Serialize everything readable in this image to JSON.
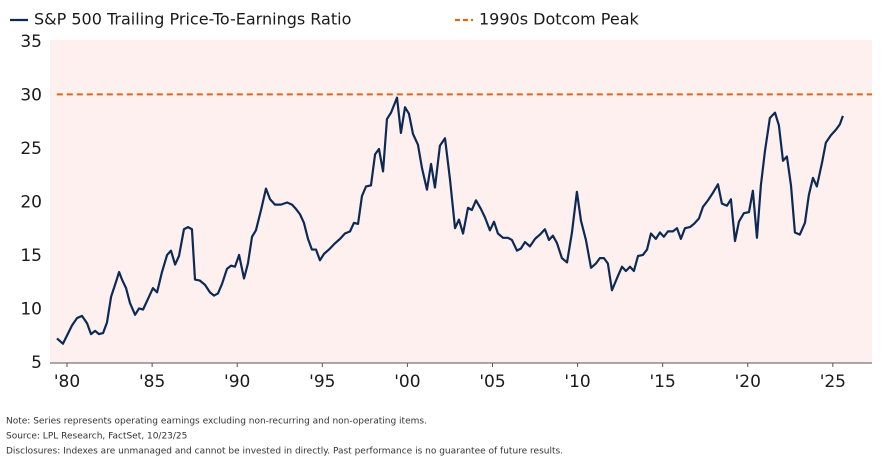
{
  "chart_data": {
    "type": "line",
    "xlim": [
      1979.0,
      2027.3
    ],
    "ylim": [
      5,
      35
    ],
    "yticks": [
      5,
      10,
      15,
      20,
      25,
      30,
      35
    ],
    "xticks": [
      {
        "value": 1980,
        "label": "'80"
      },
      {
        "value": 1985,
        "label": "'85"
      },
      {
        "value": 1990,
        "label": "'90"
      },
      {
        "value": 1995,
        "label": "'95"
      },
      {
        "value": 2000,
        "label": "'00"
      },
      {
        "value": 2005,
        "label": "'05"
      },
      {
        "value": 2010,
        "label": "'10"
      },
      {
        "value": 2015,
        "label": "'15"
      },
      {
        "value": 2020,
        "label": "'20"
      },
      {
        "value": 2025,
        "label": "'25"
      }
    ],
    "grid": false,
    "background": "#fdf0ef",
    "series": [
      {
        "name": "S&P 500 Trailing Price-To-Earnings Ratio",
        "color": "#0d2a55",
        "dashed": false,
        "x": [
          1979.41,
          1979.76,
          1980.29,
          1980.59,
          1980.88,
          1981.18,
          1981.41,
          1981.65,
          1981.88,
          1982.12,
          1982.35,
          1982.59,
          1982.82,
          1983.06,
          1983.23,
          1983.47,
          1983.7,
          1984.0,
          1984.23,
          1984.47,
          1984.76,
          1985.05,
          1985.29,
          1985.58,
          1985.88,
          1986.11,
          1986.35,
          1986.58,
          1986.87,
          1987.11,
          1987.34,
          1987.52,
          1987.81,
          1988.11,
          1988.4,
          1988.64,
          1988.87,
          1989.11,
          1989.4,
          1989.64,
          1989.87,
          1990.11,
          1990.4,
          1990.63,
          1990.87,
          1991.1,
          1991.4,
          1991.69,
          1991.93,
          1992.22,
          1992.57,
          1992.93,
          1993.22,
          1993.45,
          1993.69,
          1993.92,
          1994.16,
          1994.39,
          1994.63,
          1994.86,
          1995.1,
          1995.39,
          1995.69,
          1996.04,
          1996.33,
          1996.63,
          1996.86,
          1997.1,
          1997.33,
          1997.57,
          1997.86,
          1998.1,
          1998.33,
          1998.57,
          1998.8,
          1999.04,
          1999.39,
          1999.62,
          1999.86,
          2000.09,
          2000.33,
          2000.62,
          2000.86,
          2001.15,
          2001.39,
          2001.62,
          2001.91,
          2002.21,
          2002.5,
          2002.8,
          2003.03,
          2003.27,
          2003.56,
          2003.79,
          2004.03,
          2004.32,
          2004.56,
          2004.85,
          2005.09,
          2005.32,
          2005.62,
          2005.91,
          2006.14,
          2006.44,
          2006.67,
          2006.91,
          2007.2,
          2007.5,
          2007.79,
          2008.08,
          2008.32,
          2008.55,
          2008.79,
          2009.08,
          2009.38,
          2009.67,
          2009.96,
          2010.2,
          2010.49,
          2010.79,
          2011.08,
          2011.31,
          2011.55,
          2011.78,
          2012.02,
          2012.31,
          2012.61,
          2012.84,
          2013.08,
          2013.31,
          2013.55,
          2013.84,
          2014.08,
          2014.31,
          2014.6,
          2014.84,
          2015.07,
          2015.31,
          2015.6,
          2015.84,
          2016.07,
          2016.31,
          2016.6,
          2016.84,
          2017.13,
          2017.37,
          2017.66,
          2017.95,
          2018.25,
          2018.48,
          2018.78,
          2019.01,
          2019.25,
          2019.48,
          2019.77,
          2020.07,
          2020.3,
          2020.54,
          2020.77,
          2021.01,
          2021.3,
          2021.6,
          2021.83,
          2022.07,
          2022.3,
          2022.54,
          2022.77,
          2023.06,
          2023.36,
          2023.59,
          2023.83,
          2024.06,
          2024.36,
          2024.59,
          2024.89,
          2025.18,
          2025.41,
          2025.59
        ],
        "values": [
          7.3,
          6.8,
          8.5,
          9.2,
          9.4,
          8.7,
          7.7,
          8.0,
          7.7,
          7.8,
          8.8,
          11.2,
          12.3,
          13.5,
          12.8,
          12.0,
          10.6,
          9.5,
          10.1,
          10.0,
          11.0,
          12.0,
          11.6,
          13.5,
          15.1,
          15.5,
          14.2,
          15.0,
          17.5,
          17.7,
          17.5,
          12.8,
          12.7,
          12.3,
          11.6,
          11.3,
          11.5,
          12.4,
          13.8,
          14.1,
          14.0,
          15.1,
          12.9,
          14.3,
          16.8,
          17.4,
          19.3,
          21.3,
          20.3,
          19.8,
          19.8,
          20.0,
          19.8,
          19.4,
          18.9,
          18.1,
          16.6,
          15.6,
          15.6,
          14.6,
          15.2,
          15.6,
          16.1,
          16.6,
          17.1,
          17.3,
          18.1,
          18.0,
          20.6,
          21.5,
          21.6,
          24.5,
          25.0,
          22.9,
          27.8,
          28.4,
          29.8,
          26.5,
          28.9,
          28.3,
          26.4,
          25.4,
          23.2,
          21.2,
          23.6,
          21.4,
          25.3,
          26.0,
          22.2,
          17.6,
          18.4,
          17.1,
          19.5,
          19.3,
          20.2,
          19.4,
          18.6,
          17.4,
          18.2,
          17.1,
          16.7,
          16.7,
          16.5,
          15.5,
          15.7,
          16.3,
          15.9,
          16.6,
          17.0,
          17.5,
          16.5,
          16.9,
          16.2,
          14.8,
          14.4,
          17.2,
          21.0,
          18.3,
          16.5,
          13.9,
          14.3,
          14.8,
          14.8,
          14.3,
          11.8,
          12.9,
          14.0,
          13.6,
          14.0,
          13.6,
          15.0,
          15.1,
          15.6,
          17.1,
          16.6,
          17.2,
          16.8,
          17.3,
          17.3,
          17.6,
          16.6,
          17.6,
          17.7,
          18.0,
          18.5,
          19.6,
          20.2,
          20.9,
          21.7,
          19.9,
          19.7,
          20.3,
          16.4,
          18.2,
          19.0,
          19.1,
          21.1,
          16.7,
          21.6,
          24.8,
          27.9,
          28.4,
          27.2,
          23.9,
          24.3,
          21.6,
          17.2,
          17.0,
          18.1,
          20.7,
          22.3,
          21.5,
          23.7,
          25.6,
          26.3,
          26.8,
          27.3,
          28.1
        ]
      },
      {
        "name": "1990s Dotcom Peak",
        "color": "#e0661a",
        "dashed": true,
        "x": [
          1979.4,
          2027.3
        ],
        "values": [
          30.1,
          30.1
        ]
      }
    ],
    "notes": [
      "Note: Series represents operating earnings excluding non-recurring and non-operating items.",
      "Source: LPL Research, FactSet, 10/23/25",
      "Disclosures: Indexes are unmanaged and cannot be invested in directly. Past performance is no guarantee of future results."
    ]
  }
}
